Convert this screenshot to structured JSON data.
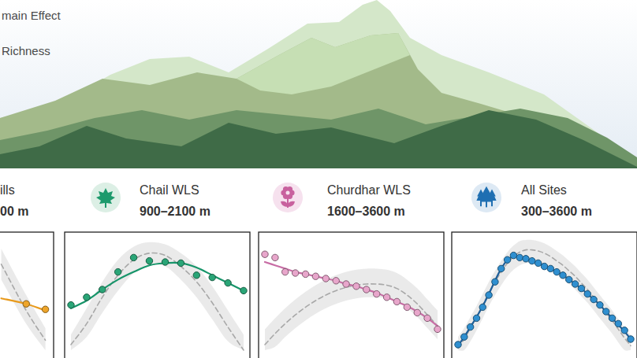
{
  "header": {
    "lines": [
      "main Effect",
      "Richness"
    ]
  },
  "chart_data": [
    {
      "type": "scatter",
      "title": "ills",
      "subtitle": "00 m",
      "xlim": [
        300,
        1200
      ],
      "ylim": [
        0,
        100
      ],
      "tick_labels": false,
      "x": [
        960,
        1090,
        1190
      ],
      "series": [
        {
          "type": "scatter",
          "color": "#eea52a",
          "marker": "circle",
          "values": [
            null,
            42,
            37
          ]
        },
        {
          "type": "line",
          "color": "#e89a1c",
          "values": [
            47,
            42,
            36
          ]
        },
        {
          "type": "line",
          "color": "#a8a8a8",
          "line_style": "dashed",
          "values": [
            78,
            36,
            9
          ],
          "lower": [
            64,
            24,
            0
          ],
          "upper": [
            92,
            50,
            20
          ]
        }
      ]
    },
    {
      "type": "scatter",
      "title": "Chail WLS",
      "subtitle": "900–2100 m",
      "xlim": [
        900,
        2100
      ],
      "ylim": [
        0,
        100
      ],
      "tick_labels": false,
      "x": [
        900,
        1009,
        1118,
        1227,
        1336,
        1445,
        1555,
        1664,
        1773,
        1882,
        1991,
        2100
      ],
      "series": [
        {
          "type": "scatter",
          "color": "#2aa577",
          "marker": "circle",
          "values": [
            41,
            48,
            55,
            71,
            84,
            81,
            80,
            79,
            68,
            66,
            61,
            54
          ]
        },
        {
          "type": "line",
          "color": "#17956a",
          "values": [
            38,
            45,
            55,
            64,
            71,
            77,
            79,
            79,
            75,
            68,
            61,
            54
          ]
        },
        {
          "type": "line",
          "color": "#a8a8a8",
          "line_style": "dashed",
          "values": [
            5,
            24,
            48,
            68,
            82,
            88,
            86,
            76,
            62,
            43,
            21,
            0
          ],
          "lower": [
            0,
            12,
            34,
            54,
            70,
            78,
            76,
            64,
            48,
            28,
            8,
            0
          ],
          "upper": [
            14,
            38,
            62,
            82,
            94,
            98,
            96,
            88,
            76,
            58,
            36,
            14
          ]
        }
      ]
    },
    {
      "type": "scatter",
      "title": "Churdhar WLS",
      "subtitle": "1600–3600 m",
      "xlim": [
        1600,
        3600
      ],
      "ylim": [
        0,
        100
      ],
      "tick_labels": false,
      "x": [
        1600,
        1718,
        1835,
        1953,
        2071,
        2188,
        2306,
        2424,
        2541,
        2659,
        2776,
        2894,
        3012,
        3129,
        3247,
        3365,
        3482,
        3600
      ],
      "series": [
        {
          "type": "scatter",
          "color": "#e8a6cb",
          "marker": "circle",
          "values": [
            87,
            84,
            71,
            70,
            69,
            67,
            65,
            63,
            60,
            58,
            55,
            51,
            48,
            44,
            39,
            34,
            29,
            19
          ]
        },
        {
          "type": "line",
          "color": "#c86da5",
          "values": [
            80,
            77,
            74,
            71,
            69,
            67,
            65,
            63,
            60,
            58,
            55,
            52,
            48,
            44,
            40,
            35,
            29,
            22
          ]
        },
        {
          "type": "line",
          "color": "#a8a8a8",
          "line_style": "dashed",
          "values": [
            5,
            15,
            24,
            32,
            39,
            45,
            50,
            54,
            57,
            59,
            60,
            60,
            59,
            56,
            50,
            42,
            32,
            22
          ],
          "lower": [
            0,
            3,
            12,
            20,
            27,
            33,
            38,
            42,
            45,
            47,
            48,
            48,
            47,
            44,
            38,
            30,
            20,
            10
          ],
          "upper": [
            19,
            29,
            38,
            46,
            53,
            59,
            64,
            68,
            71,
            73,
            74,
            74,
            73,
            70,
            64,
            56,
            46,
            36
          ]
        }
      ]
    },
    {
      "type": "scatter",
      "title": "All Sites",
      "subtitle": "300–3600 m",
      "xlim": [
        300,
        3600
      ],
      "ylim": [
        0,
        100
      ],
      "tick_labels": false,
      "x": [
        300,
        418,
        536,
        654,
        771,
        889,
        1007,
        1125,
        1243,
        1361,
        1479,
        1596,
        1714,
        1832,
        1950,
        2068,
        2186,
        2304,
        2421,
        2539,
        2657,
        2775,
        2893,
        3011,
        3129,
        3246,
        3364,
        3482,
        3600
      ],
      "series": [
        {
          "type": "scatter",
          "color": "#2f8fd0",
          "marker": "circle",
          "values": [
            5,
            12,
            21,
            29,
            39,
            50,
            62,
            74,
            82,
            86,
            84,
            83,
            81,
            79,
            76,
            74,
            71,
            68,
            64,
            60,
            56,
            51,
            46,
            41,
            35,
            29,
            24,
            18,
            10
          ]
        },
        {
          "type": "line",
          "color": "#1f5f99",
          "values": [
            4,
            12,
            21,
            30,
            40,
            51,
            63,
            74,
            82,
            85,
            85,
            83,
            81,
            79,
            77,
            74,
            71,
            68,
            64,
            60,
            56,
            51,
            46,
            41,
            35,
            29,
            23,
            17,
            10
          ]
        },
        {
          "type": "line",
          "color": "#a8a8a8",
          "line_style": "dashed",
          "values": [
            2,
            10,
            20,
            30,
            41,
            52,
            62,
            71,
            79,
            85,
            89,
            91,
            91,
            90,
            88,
            85,
            81,
            77,
            72,
            67,
            61,
            55,
            48,
            41,
            34,
            27,
            19,
            11,
            4
          ],
          "lower": [
            0,
            0,
            8,
            18,
            29,
            40,
            50,
            59,
            67,
            73,
            77,
            79,
            79,
            78,
            76,
            73,
            69,
            65,
            60,
            55,
            49,
            43,
            36,
            29,
            22,
            15,
            7,
            0,
            0
          ],
          "upper": [
            12,
            20,
            30,
            40,
            51,
            62,
            72,
            81,
            89,
            95,
            99,
            100,
            100,
            99,
            97,
            94,
            90,
            86,
            81,
            76,
            70,
            64,
            57,
            50,
            43,
            36,
            28,
            20,
            14
          ]
        }
      ]
    }
  ]
}
